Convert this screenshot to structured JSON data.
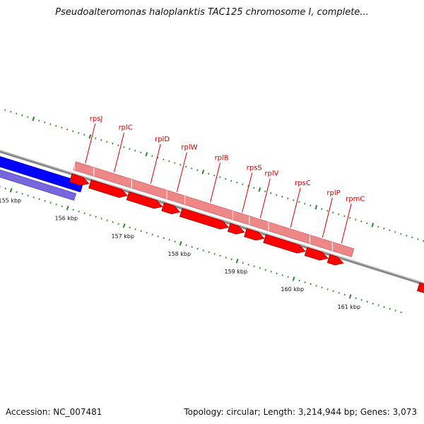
{
  "title": "Pseudoalteromonas haloplanktis TAC125 chromosome I, complete...",
  "accession_text": "Accession: NC_007481",
  "summary_text": "Topology: circular; Length: 3,214,944 bp; Genes: 3,073",
  "colors": {
    "backbone": "#888888",
    "feature_forward": "#ff0000",
    "feature_light": "#ee8888",
    "feature_blue": "#0000ff",
    "feature_purple": "#7766dd",
    "tick": "#228822",
    "label": "#cc0000"
  },
  "scale": {
    "unit": "kbp",
    "major_ticks": [
      {
        "position_kbp": 155,
        "label": "155 kbp"
      },
      {
        "position_kbp": 156,
        "label": "156 kbp"
      },
      {
        "position_kbp": 157,
        "label": "157 kbp"
      },
      {
        "position_kbp": 158,
        "label": "158 kbp"
      },
      {
        "position_kbp": 159,
        "label": "159 kbp"
      },
      {
        "position_kbp": 160,
        "label": "160 kbp"
      },
      {
        "position_kbp": 161,
        "label": "161 kbp"
      }
    ]
  },
  "genes": [
    {
      "name": "rpsJ",
      "start_kbp": 155.9,
      "end_kbp": 156.22
    },
    {
      "name": "rplC",
      "start_kbp": 156.24,
      "end_kbp": 156.9
    },
    {
      "name": "rplD",
      "start_kbp": 156.91,
      "end_kbp": 157.52
    },
    {
      "name": "rplW",
      "start_kbp": 157.53,
      "end_kbp": 157.83
    },
    {
      "name": "rplB",
      "start_kbp": 157.85,
      "end_kbp": 158.69
    },
    {
      "name": "rpsS",
      "start_kbp": 158.7,
      "end_kbp": 158.97
    },
    {
      "name": "rplV",
      "start_kbp": 158.99,
      "end_kbp": 159.32
    },
    {
      "name": "rpsC",
      "start_kbp": 159.33,
      "end_kbp": 160.05
    },
    {
      "name": "rplP",
      "start_kbp": 160.06,
      "end_kbp": 160.45
    },
    {
      "name": "rpmC",
      "start_kbp": 160.46,
      "end_kbp": 160.72
    }
  ]
}
